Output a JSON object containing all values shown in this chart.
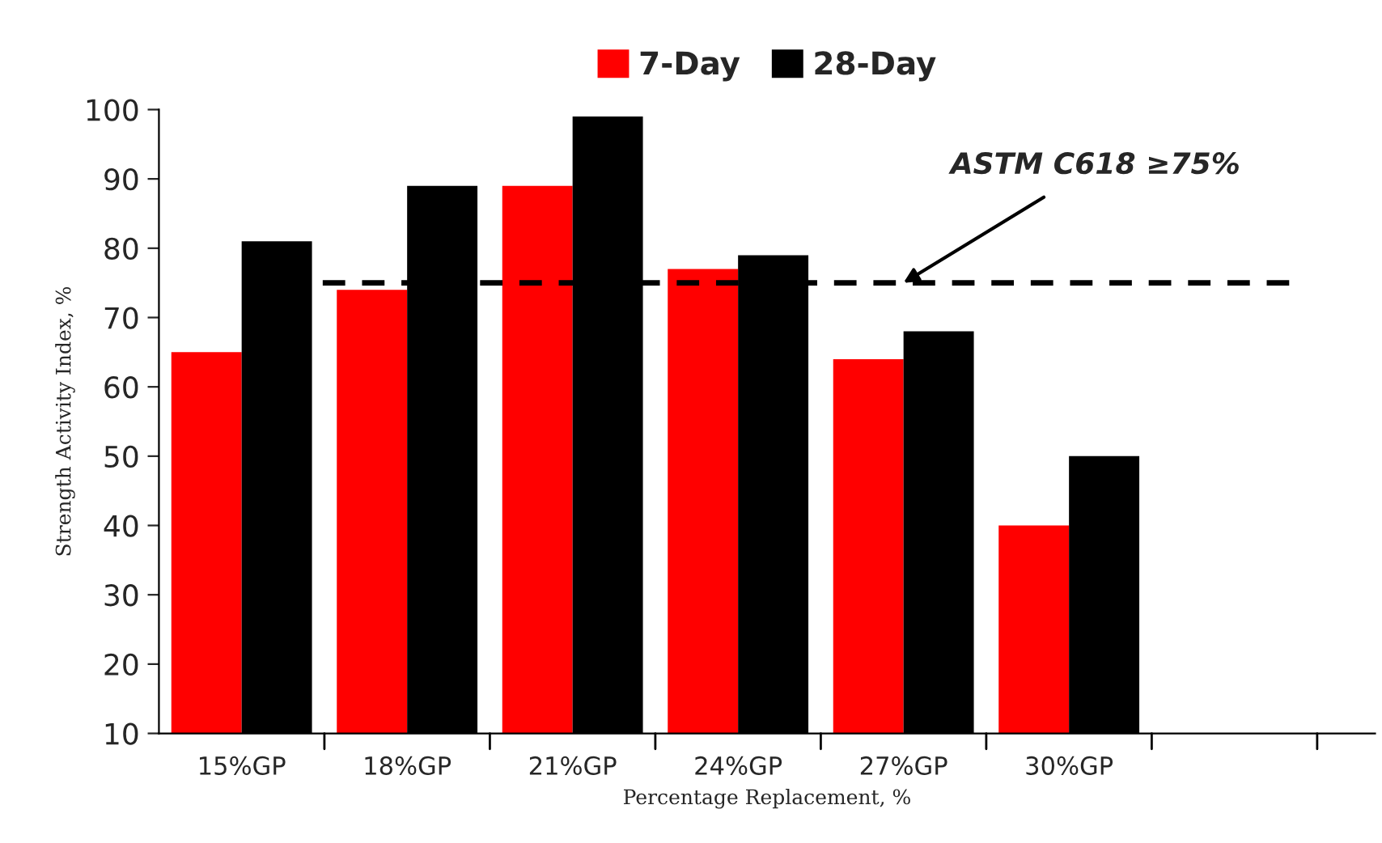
{
  "chart_data": {
    "type": "bar",
    "xlabel": "Percentage Replacement, %",
    "ylabel": "Strength Activity Index, %",
    "categories": [
      "15%GP",
      "18%GP",
      "21%GP",
      "24%GP",
      "27%GP",
      "30%GP",
      null
    ],
    "series": [
      {
        "name": "7-Day",
        "color": "#ff0000",
        "values": [
          65,
          74,
          89,
          77,
          64,
          40,
          null
        ]
      },
      {
        "name": "28-Day",
        "color": "#000000",
        "values": [
          81,
          89,
          99,
          79,
          68,
          50,
          null
        ]
      }
    ],
    "ylim": [
      10,
      100
    ],
    "yticks": [
      10,
      20,
      30,
      40,
      50,
      60,
      70,
      80,
      90,
      100
    ],
    "ref_lines": [
      {
        "axis": "y",
        "value": 75,
        "color": "#000000",
        "line_style": "dashed"
      }
    ],
    "annotations": [
      {
        "text": "ASTM C618 ≥75%",
        "x": "27%GP",
        "y": 75
      }
    ],
    "legend": "top",
    "grid": false
  }
}
